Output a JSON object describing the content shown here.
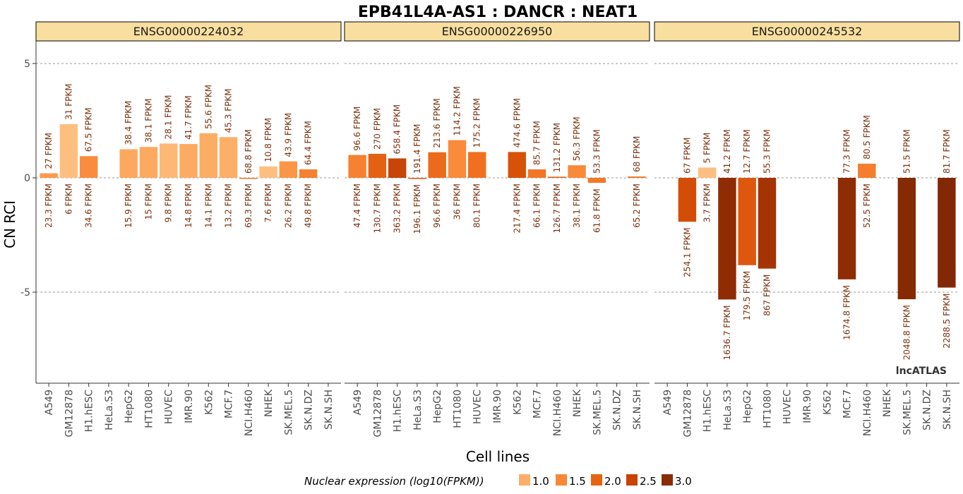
{
  "chart_data": {
    "type": "bar",
    "title": "EPB41L4A-AS1 : DANCR : NEAT1",
    "xlabel": "Cell lines",
    "ylabel": "CN RCI",
    "ylim": [
      -9,
      6
    ],
    "yticks": [
      {
        "value": 5,
        "label": "5"
      },
      {
        "value": 0,
        "label": "0"
      },
      {
        "value": -5,
        "label": "-5"
      }
    ],
    "categories": [
      "A549",
      "GM12878",
      "H1.hESC",
      "HeLa.S3",
      "HepG2",
      "HT1080",
      "HUVEC",
      "IMR.90",
      "K562",
      "MCF.7",
      "NCI.H460",
      "NHEK",
      "SK.MEL.5",
      "SK.N.DZ",
      "SK.N.SH"
    ],
    "watermark": "lncATLAS",
    "legend": {
      "title": "Nuclear expression (log10(FPKM))",
      "items": [
        {
          "label": "1.0",
          "color": "#fdae6b"
        },
        {
          "label": "1.5",
          "color": "#f98836"
        },
        {
          "label": "2.0",
          "color": "#e9620f"
        },
        {
          "label": "2.5",
          "color": "#c94103"
        },
        {
          "label": "3.0",
          "color": "#8a2d04"
        }
      ]
    },
    "color_scale": {
      "domain": [
        0.9,
        3.4
      ],
      "stops": [
        "#fdbf80",
        "#fd9848",
        "#f0701f",
        "#d54d06",
        "#a83505",
        "#7f2704"
      ]
    },
    "panels": [
      {
        "name": "ENSG00000224032",
        "bars": [
          {
            "cell": "A549",
            "value": 0.2,
            "top_label": "27 FPKM",
            "bottom_label": "23.3 FPKM",
            "nuc_log10": 1.37
          },
          {
            "cell": "GM12878",
            "value": 2.35,
            "top_label": "31 FPKM",
            "bottom_label": "6 FPKM",
            "nuc_log10": 0.78
          },
          {
            "cell": "H1.hESC",
            "value": 0.95,
            "top_label": "67.5 FPKM",
            "bottom_label": "34.6 FPKM",
            "nuc_log10": 1.54
          },
          {
            "cell": "HeLa.S3",
            "value": null,
            "top_label": "",
            "bottom_label": "",
            "nuc_log10": null
          },
          {
            "cell": "HepG2",
            "value": 1.25,
            "top_label": "38.4 FPKM",
            "bottom_label": "15.9 FPKM",
            "nuc_log10": 1.2
          },
          {
            "cell": "HT1080",
            "value": 1.35,
            "top_label": "38.1 FPKM",
            "bottom_label": "15 FPKM",
            "nuc_log10": 1.18
          },
          {
            "cell": "HUVEC",
            "value": 1.5,
            "top_label": "28.1 FPKM",
            "bottom_label": "9.8 FPKM",
            "nuc_log10": 0.99
          },
          {
            "cell": "IMR.90",
            "value": 1.48,
            "top_label": "41.7 FPKM",
            "bottom_label": "14.8 FPKM",
            "nuc_log10": 1.17
          },
          {
            "cell": "K562",
            "value": 1.95,
            "top_label": "55.6 FPKM",
            "bottom_label": "14.1 FPKM",
            "nuc_log10": 1.15
          },
          {
            "cell": "MCF.7",
            "value": 1.78,
            "top_label": "45.3 FPKM",
            "bottom_label": "13.2 FPKM",
            "nuc_log10": 1.12
          },
          {
            "cell": "NCI.H460",
            "value": 0.0,
            "top_label": "68.8 FPKM",
            "bottom_label": "69.3 FPKM",
            "nuc_log10": 1.84
          },
          {
            "cell": "NHEK",
            "value": 0.5,
            "top_label": "10.8 FPKM",
            "bottom_label": "7.6 FPKM",
            "nuc_log10": 0.88
          },
          {
            "cell": "SK.MEL.5",
            "value": 0.72,
            "top_label": "43.9 FPKM",
            "bottom_label": "26.2 FPKM",
            "nuc_log10": 1.42
          },
          {
            "cell": "SK.N.DZ",
            "value": 0.37,
            "top_label": "64.4 FPKM",
            "bottom_label": "49.8 FPKM",
            "nuc_log10": 1.7
          },
          {
            "cell": "SK.N.SH",
            "value": null,
            "top_label": "",
            "bottom_label": "",
            "nuc_log10": null
          }
        ]
      },
      {
        "name": "ENSG00000226950",
        "bars": [
          {
            "cell": "A549",
            "value": 1.0,
            "top_label": "96.6 FPKM",
            "bottom_label": "47.4 FPKM",
            "nuc_log10": 1.68
          },
          {
            "cell": "GM12878",
            "value": 1.05,
            "top_label": "270 FPKM",
            "bottom_label": "130.7 FPKM",
            "nuc_log10": 2.12
          },
          {
            "cell": "H1.hESC",
            "value": 0.85,
            "top_label": "658.4 FPKM",
            "bottom_label": "363.2 FPKM",
            "nuc_log10": 2.56
          },
          {
            "cell": "HeLa.S3",
            "value": -0.03,
            "top_label": "191.4 FPKM",
            "bottom_label": "196.1 FPKM",
            "nuc_log10": 2.29
          },
          {
            "cell": "HepG2",
            "value": 1.12,
            "top_label": "213.6 FPKM",
            "bottom_label": "96.6 FPKM",
            "nuc_log10": 1.98
          },
          {
            "cell": "HT1080",
            "value": 1.65,
            "top_label": "114.2 FPKM",
            "bottom_label": "36 FPKM",
            "nuc_log10": 1.56
          },
          {
            "cell": "HUVEC",
            "value": 1.13,
            "top_label": "175.2 FPKM",
            "bottom_label": "80.1 FPKM",
            "nuc_log10": 1.9
          },
          {
            "cell": "IMR.90",
            "value": null,
            "top_label": "",
            "bottom_label": "",
            "nuc_log10": null
          },
          {
            "cell": "K562",
            "value": 1.13,
            "top_label": "474.6 FPKM",
            "bottom_label": "217.4 FPKM",
            "nuc_log10": 2.34
          },
          {
            "cell": "MCF.7",
            "value": 0.37,
            "top_label": "85.7 FPKM",
            "bottom_label": "66.1 FPKM",
            "nuc_log10": 1.82
          },
          {
            "cell": "NCI.H460",
            "value": 0.05,
            "top_label": "131.2 FPKM",
            "bottom_label": "126.7 FPKM",
            "nuc_log10": 2.1
          },
          {
            "cell": "NHEK",
            "value": 0.55,
            "top_label": "56.3 FPKM",
            "bottom_label": "38.1 FPKM",
            "nuc_log10": 1.58
          },
          {
            "cell": "SK.MEL.5",
            "value": -0.22,
            "top_label": "53.3 FPKM",
            "bottom_label": "61.8 FPKM",
            "nuc_log10": 1.79
          },
          {
            "cell": "SK.N.DZ",
            "value": null,
            "top_label": "",
            "bottom_label": "",
            "nuc_log10": null
          },
          {
            "cell": "SK.N.SH",
            "value": 0.06,
            "top_label": "68 FPKM",
            "bottom_label": "65.2 FPKM",
            "nuc_log10": 1.81
          }
        ]
      },
      {
        "name": "ENSG00000245532",
        "bars": [
          {
            "cell": "A549",
            "value": null,
            "top_label": "",
            "bottom_label": "",
            "nuc_log10": null
          },
          {
            "cell": "GM12878",
            "value": -1.92,
            "top_label": "67 FPKM",
            "bottom_label": "254.1 FPKM",
            "nuc_log10": 2.41
          },
          {
            "cell": "H1.hESC",
            "value": 0.45,
            "top_label": "5 FPKM",
            "bottom_label": "3.7 FPKM",
            "nuc_log10": 0.57
          },
          {
            "cell": "HeLa.S3",
            "value": -5.32,
            "top_label": "41.2 FPKM",
            "bottom_label": "1636.7 FPKM",
            "nuc_log10": 3.21
          },
          {
            "cell": "HepG2",
            "value": -3.82,
            "top_label": "12.7 FPKM",
            "bottom_label": "179.5 FPKM",
            "nuc_log10": 2.25
          },
          {
            "cell": "HT1080",
            "value": -3.97,
            "top_label": "55.3 FPKM",
            "bottom_label": "867 FPKM",
            "nuc_log10": 2.94
          },
          {
            "cell": "HUVEC",
            "value": null,
            "top_label": "",
            "bottom_label": "",
            "nuc_log10": null
          },
          {
            "cell": "IMR.90",
            "value": null,
            "top_label": "",
            "bottom_label": "",
            "nuc_log10": null
          },
          {
            "cell": "K562",
            "value": null,
            "top_label": "",
            "bottom_label": "",
            "nuc_log10": null
          },
          {
            "cell": "MCF.7",
            "value": -4.44,
            "top_label": "77.3 FPKM",
            "bottom_label": "1674.8 FPKM",
            "nuc_log10": 3.22
          },
          {
            "cell": "NCI.H460",
            "value": 0.62,
            "top_label": "80.5 FPKM",
            "bottom_label": "52.5 FPKM",
            "nuc_log10": 1.72
          },
          {
            "cell": "NHEK",
            "value": null,
            "top_label": "",
            "bottom_label": "",
            "nuc_log10": null
          },
          {
            "cell": "SK.MEL.5",
            "value": -5.31,
            "top_label": "51.5 FPKM",
            "bottom_label": "2048.8 FPKM",
            "nuc_log10": 3.31
          },
          {
            "cell": "SK.N.DZ",
            "value": null,
            "top_label": "",
            "bottom_label": "",
            "nuc_log10": null
          },
          {
            "cell": "SK.N.SH",
            "value": -4.8,
            "top_label": "81.7 FPKM",
            "bottom_label": "2288.5 FPKM",
            "nuc_log10": 3.36
          }
        ]
      }
    ]
  }
}
